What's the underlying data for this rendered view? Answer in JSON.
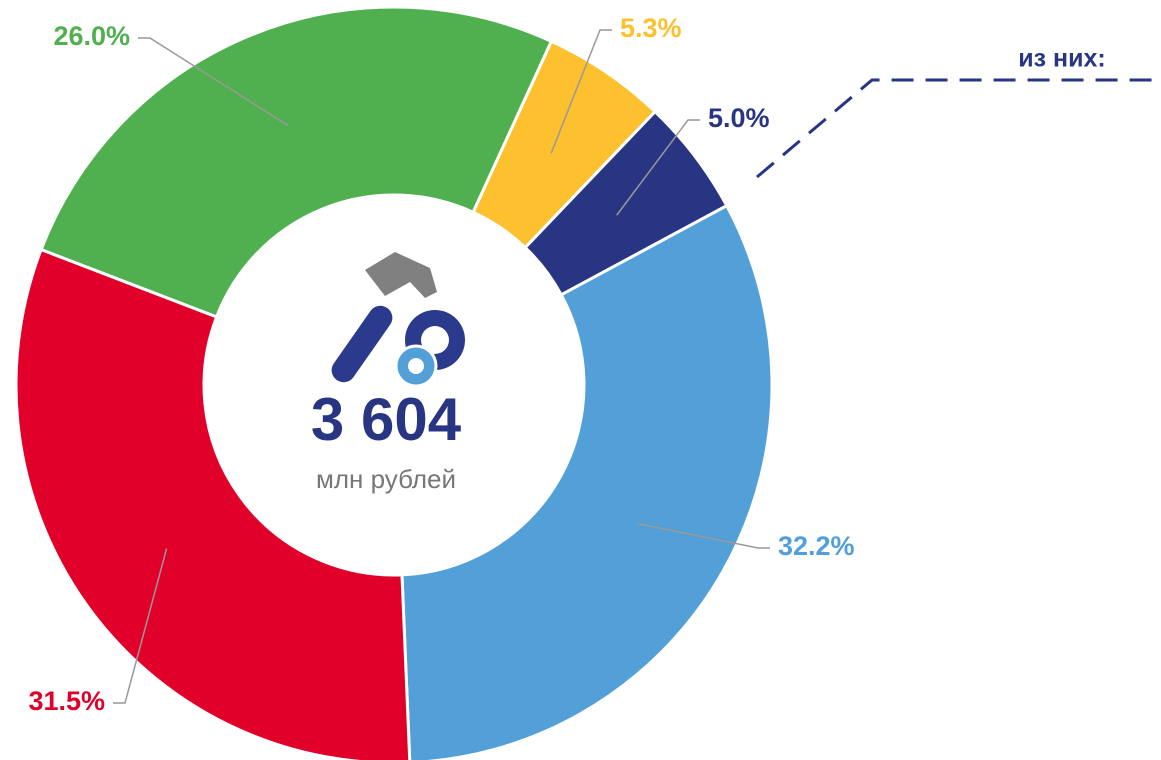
{
  "chart_data": {
    "type": "donut",
    "center_value": "3 604",
    "center_unit": "млн рублей",
    "annotation": "из них:",
    "categories": [
      null,
      null,
      null,
      null,
      null
    ],
    "values": [
      5.3,
      5.0,
      32.2,
      31.5,
      26.0
    ],
    "value_labels": [
      "5.3%",
      "5.0%",
      "32.2%",
      "31.5%",
      "26.0%"
    ],
    "colors": [
      "#fdc02f",
      "#283583",
      "#539fd8",
      "#e0002a",
      "#50b050"
    ]
  }
}
